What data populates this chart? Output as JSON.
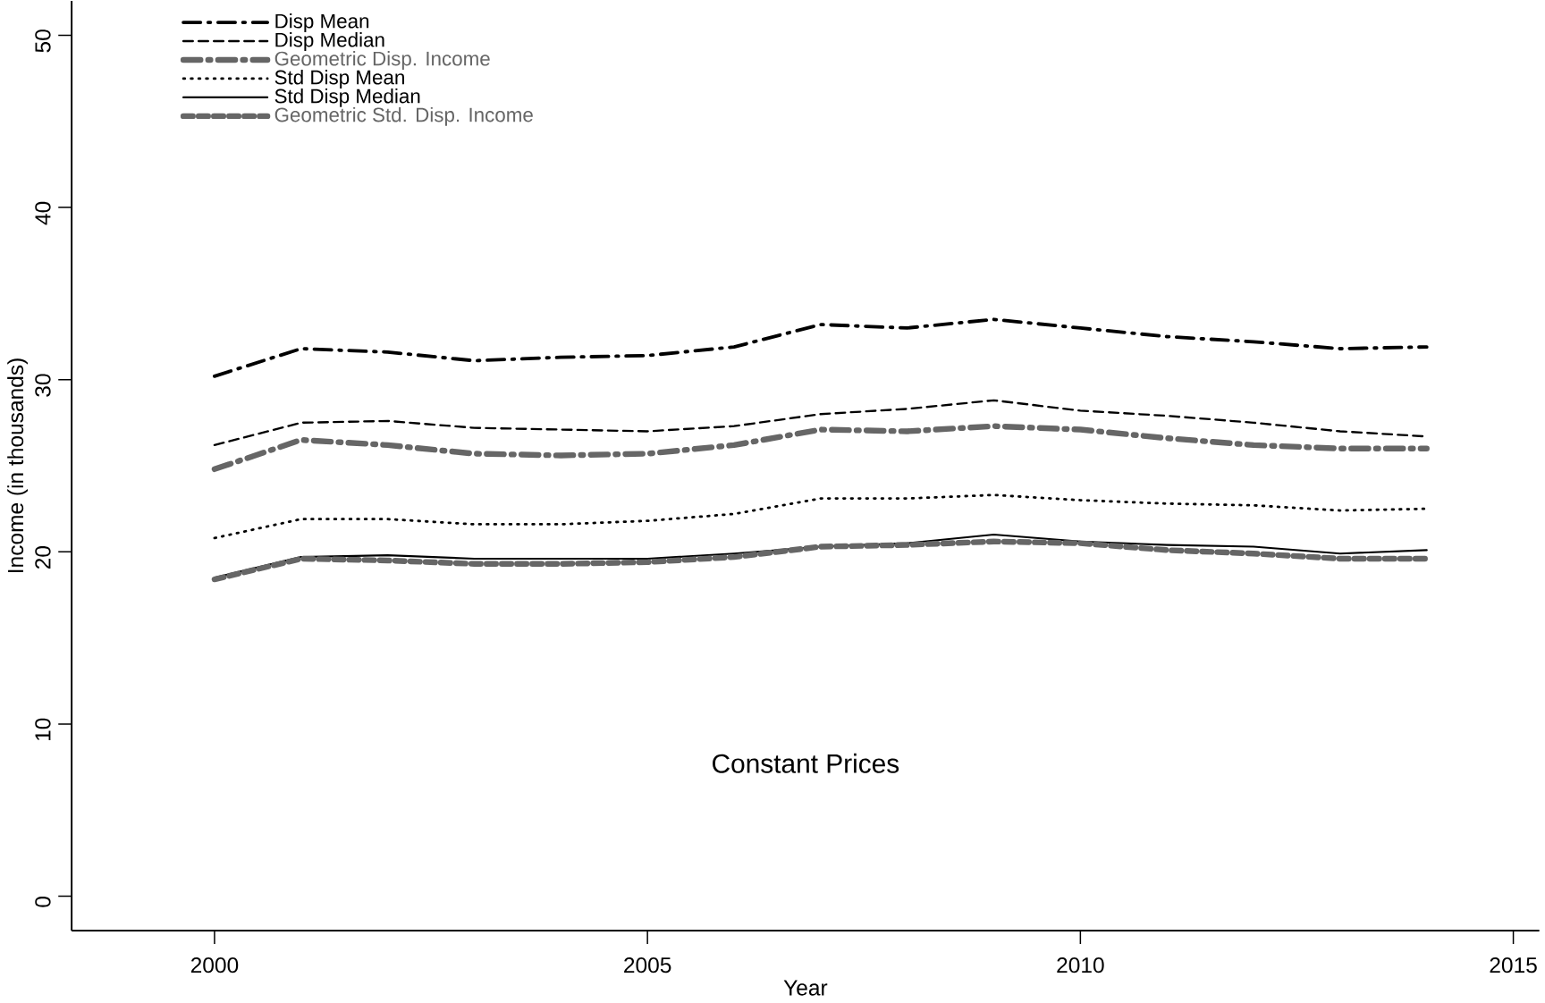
{
  "chart_data": {
    "type": "line",
    "xlabel": "Year",
    "ylabel": "Income (in thousands)",
    "x": [
      2000,
      2001,
      2002,
      2003,
      2004,
      2005,
      2006,
      2007,
      2008,
      2009,
      2010,
      2011,
      2012,
      2013,
      2014
    ],
    "series": [
      {
        "name": "Disp Mean",
        "color": "#000000",
        "line_style": "dashdot",
        "values": [
          30.2,
          31.8,
          31.6,
          31.1,
          31.3,
          31.4,
          31.9,
          33.2,
          33.0,
          33.5,
          33.0,
          32.5,
          32.2,
          31.8,
          31.9
        ]
      },
      {
        "name": "Disp Median",
        "color": "#000000",
        "line_style": "dashed",
        "values": [
          26.2,
          27.5,
          27.6,
          27.2,
          27.1,
          27.0,
          27.3,
          28.0,
          28.3,
          28.8,
          28.2,
          27.9,
          27.5,
          27.0,
          26.7
        ]
      },
      {
        "name": "Geometric Disp. Income",
        "color": "#666666",
        "line_style": "dashdot",
        "values": [
          24.8,
          26.5,
          26.2,
          25.7,
          25.6,
          25.7,
          26.2,
          27.1,
          27.0,
          27.3,
          27.1,
          26.6,
          26.2,
          26.0,
          26.0
        ]
      },
      {
        "name": "Std Disp Mean",
        "color": "#000000",
        "line_style": "dotted",
        "values": [
          20.8,
          21.9,
          21.9,
          21.6,
          21.6,
          21.8,
          22.2,
          23.1,
          23.1,
          23.3,
          23.0,
          22.8,
          22.7,
          22.4,
          22.5
        ]
      },
      {
        "name": "Std Disp Median",
        "color": "#000000",
        "line_style": "solid",
        "values": [
          18.5,
          19.7,
          19.8,
          19.6,
          19.6,
          19.6,
          19.9,
          20.3,
          20.5,
          21.0,
          20.6,
          20.4,
          20.3,
          19.9,
          20.1
        ]
      },
      {
        "name": "Geometric Std. Disp. Income",
        "color": "#666666",
        "line_style": "dashed",
        "values": [
          18.4,
          19.6,
          19.5,
          19.3,
          19.3,
          19.4,
          19.7,
          20.3,
          20.4,
          20.6,
          20.5,
          20.1,
          19.9,
          19.6,
          19.6
        ]
      }
    ],
    "annotations": [
      "Constant Prices"
    ],
    "xlim": [
      1998.35,
      2015.3
    ],
    "ylim": [
      -2,
      52
    ],
    "xticks": [
      2000,
      2005,
      2010,
      2015
    ],
    "yticks": [
      0,
      10,
      20,
      30,
      40,
      50
    ],
    "grid": false,
    "legend": "top left"
  }
}
